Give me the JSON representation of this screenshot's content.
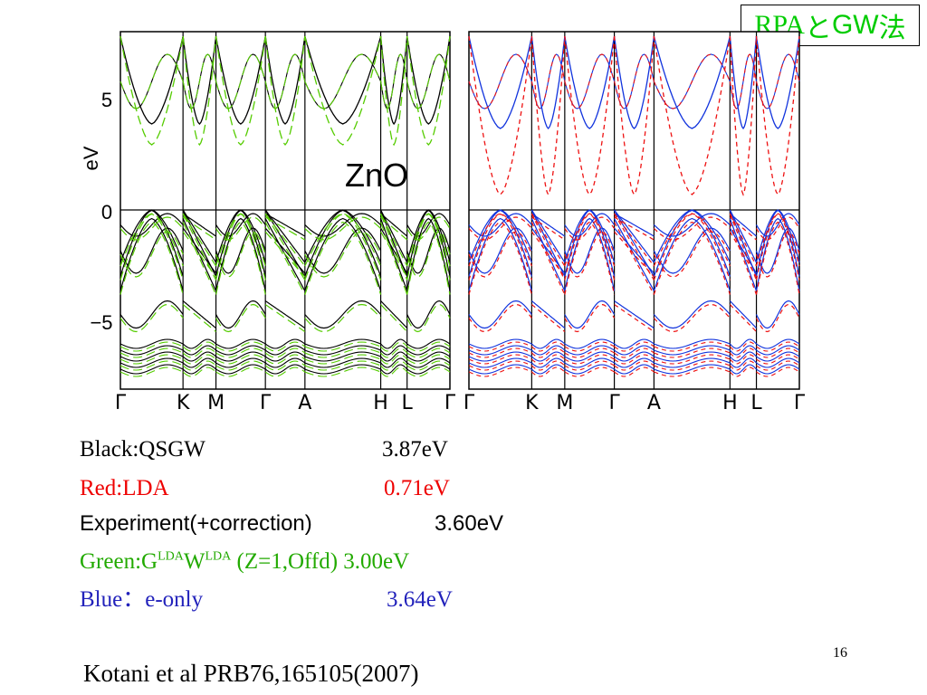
{
  "slide_title": {
    "rpa": "RPA",
    "and_char": "と",
    "gw": "GW",
    "method_char": "法"
  },
  "plot": {
    "material_label": "ZnO",
    "y_axis_label": "eV",
    "y_ticks": [
      "5",
      "0",
      "−5"
    ],
    "left_k_labels": [
      "Γ",
      "K",
      "M",
      "Γ",
      "A",
      "H",
      "L",
      "Γ"
    ],
    "right_k_labels": [
      "Γ",
      "K",
      "M",
      "Γ",
      "A",
      "H",
      "L",
      "Γ"
    ],
    "colors": {
      "qsgw": "#000000",
      "glda": "#55cc00",
      "lda": "#ee1111",
      "e_only": "#1133dd"
    }
  },
  "legend": {
    "black": {
      "label": "Black:QSGW",
      "value": "3.87eV",
      "color": "#000000"
    },
    "red": {
      "label": "Red:LDA",
      "value": "0.71eV",
      "color": "#ee0000"
    },
    "experiment": {
      "label": "Experiment(+correction)",
      "value": "3.60eV",
      "color": "#000000"
    },
    "green": {
      "prefix": "Green:G",
      "sup1": "LDA",
      "mid": "W",
      "sup2": "LDA",
      "suffix": " (Z=1,Offd) 3.00eV",
      "color": "#22aa00"
    },
    "blue": {
      "label": "Blue：e-only",
      "value": "3.64eV",
      "color": "#2222bb"
    }
  },
  "page_number": "16",
  "citation": "Kotani et al PRB76,165105(2007)"
}
